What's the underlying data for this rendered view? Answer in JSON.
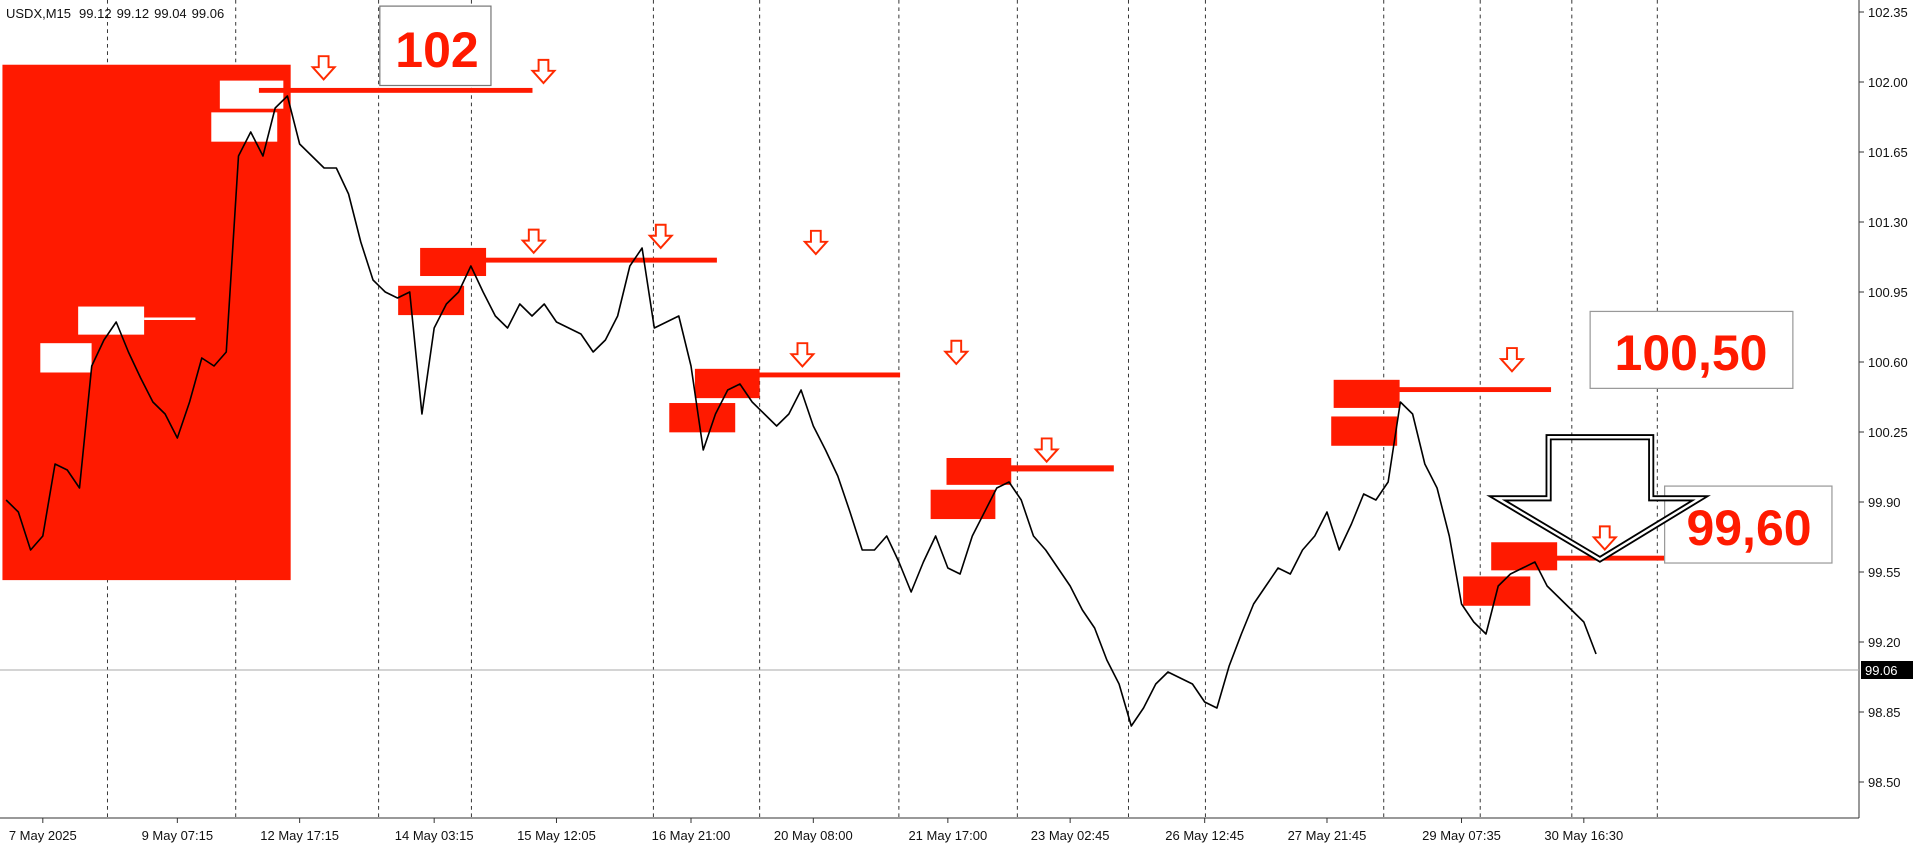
{
  "chart_data": {
    "type": "line",
    "symbol": "USDX,M15",
    "ohlc": [
      99.12,
      99.12,
      99.04,
      99.06
    ],
    "annotations": [
      "102",
      "100,50",
      "99,60"
    ],
    "color": "#000000",
    "categories": [
      null,
      null,
      null,
      "7 May 2025",
      null,
      null,
      null,
      null,
      null,
      null,
      null,
      null,
      null,
      null,
      "9 May 07:15",
      null,
      null,
      null,
      null,
      null,
      null,
      null,
      null,
      null,
      "12 May 17:15",
      null,
      null,
      null,
      null,
      null,
      null,
      null,
      null,
      null,
      null,
      "14 May 03:15",
      null,
      null,
      null,
      null,
      null,
      null,
      null,
      null,
      null,
      "15 May 12:05",
      null,
      null,
      null,
      null,
      null,
      null,
      null,
      null,
      null,
      null,
      "16 May 21:00",
      null,
      null,
      null,
      null,
      null,
      null,
      null,
      null,
      null,
      "20 May 08:00",
      null,
      null,
      null,
      null,
      null,
      null,
      null,
      null,
      null,
      null,
      "21 May 17:00",
      null,
      null,
      null,
      null,
      null,
      null,
      null,
      null,
      null,
      "23 May 02:45",
      null,
      null,
      null,
      null,
      null,
      null,
      null,
      null,
      null,
      null,
      "26 May 12:45",
      null,
      null,
      null,
      null,
      null,
      null,
      null,
      null,
      null,
      "27 May 21:45",
      null,
      null,
      null,
      null,
      null,
      null,
      null,
      null,
      null,
      null,
      "29 May 07:35",
      null,
      null,
      null,
      null,
      null,
      null,
      null,
      null,
      null,
      "30 May 16:30",
      null,
      null,
      null,
      null,
      null,
      null,
      null,
      null,
      null,
      null,
      null,
      null,
      null,
      null,
      null,
      null,
      null,
      null,
      null,
      null,
      null,
      null
    ],
    "values": [
      99.91,
      99.85,
      99.66,
      99.73,
      100.09,
      100.06,
      99.97,
      100.58,
      100.71,
      100.8,
      100.65,
      100.52,
      100.4,
      100.34,
      100.22,
      100.4,
      100.62,
      100.58,
      100.65,
      101.63,
      101.75,
      101.63,
      101.87,
      101.93,
      101.69,
      101.63,
      101.57,
      101.57,
      101.44,
      101.2,
      101.01,
      100.95,
      100.92,
      100.95,
      100.34,
      100.77,
      100.89,
      100.95,
      101.08,
      100.95,
      100.83,
      100.77,
      100.89,
      100.83,
      100.89,
      100.8,
      100.77,
      100.74,
      100.65,
      100.71,
      100.83,
      101.08,
      101.17,
      100.77,
      100.8,
      100.83,
      100.58,
      100.16,
      100.34,
      100.46,
      100.49,
      100.4,
      100.34,
      100.28,
      100.34,
      100.46,
      100.28,
      100.16,
      100.03,
      99.85,
      99.66,
      99.66,
      99.73,
      99.6,
      99.45,
      99.6,
      99.73,
      99.57,
      99.54,
      99.73,
      99.85,
      99.97,
      100.0,
      99.91,
      99.73,
      99.66,
      99.57,
      99.48,
      99.36,
      99.27,
      99.11,
      98.99,
      98.78,
      98.87,
      98.99,
      99.05,
      99.02,
      98.99,
      98.9,
      98.87,
      99.08,
      99.24,
      99.39,
      99.48,
      99.57,
      99.54,
      99.66,
      99.73,
      99.85,
      99.66,
      99.79,
      99.94,
      99.91,
      100.0,
      100.4,
      100.34,
      100.09,
      99.97,
      99.73,
      99.39,
      99.3,
      99.24,
      99.48,
      99.54,
      99.57,
      99.6,
      99.48,
      99.42,
      99.36,
      99.3,
      99.14,
      null,
      null,
      null,
      null,
      null,
      null,
      null,
      null,
      null,
      null,
      null,
      null,
      null,
      null,
      null,
      null,
      null,
      null,
      null,
      null,
      null
    ],
    "ylim": [
      98.32,
      102.41
    ],
    "yticks": [
      {
        "value": 98.5,
        "label": "98.50"
      },
      98.85,
      {
        "value": 99.2,
        "label": "99.20"
      },
      99.55,
      {
        "value": 99.9,
        "label": "99.90"
      },
      100.25,
      {
        "value": 100.6,
        "label": "100.60"
      },
      100.95,
      {
        "value": 101.3,
        "label": "101.30"
      },
      101.65,
      {
        "value": 102,
        "label": "102.00"
      },
      102.35
    ],
    "last_price": 99.06
  }
}
